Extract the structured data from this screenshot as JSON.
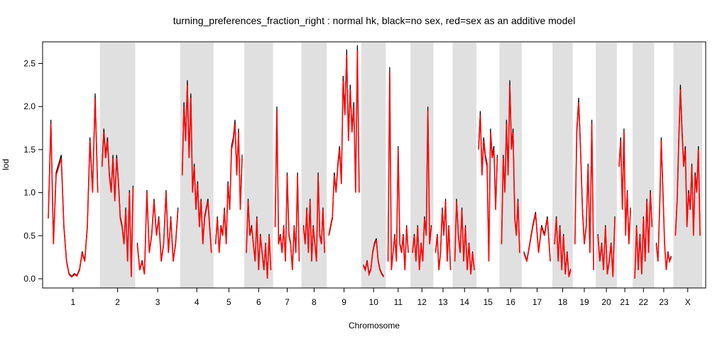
{
  "chart_data": {
    "type": "line",
    "title": "turning_preferences_fraction_right : normal hk, black=no sex, red=sex as an additive model",
    "xlabel": "Chromosome",
    "ylabel": "lod",
    "ylim": [
      0,
      2.7
    ],
    "yticks": [
      0.0,
      0.5,
      1.0,
      1.5,
      2.0,
      2.5
    ],
    "ytick_labels": [
      "0.0",
      "0.5",
      "1.0",
      "1.5",
      "2.0",
      "2.5"
    ],
    "grid": false,
    "shaded_alternate_chromosomes": true,
    "colors": {
      "no_sex": "#000000",
      "sex_additive": "#ff0000",
      "shade": "#e0e0e0"
    },
    "chromosomes": [
      {
        "name": "1",
        "length": 1.4,
        "points": [
          0.7,
          1.8,
          0.4,
          1.2,
          1.3,
          1.4,
          0.6,
          0.2,
          0.05,
          0.02,
          0.05,
          0.03,
          0.1,
          0.3,
          0.2,
          0.6,
          1.6,
          1.0,
          2.1,
          1.0
        ]
      },
      {
        "name": "2",
        "length": 0.92,
        "points": [
          1.3,
          1.7,
          1.4,
          1.6,
          1.2,
          1.0,
          1.4,
          0.9,
          1.4,
          1.1,
          0.7,
          0.6,
          0.4,
          0.8,
          0.2,
          1.0,
          0.02,
          1.05
        ]
      },
      {
        "name": "3",
        "length": 1.17,
        "points": [
          0.4,
          0.1,
          0.2,
          0.05,
          1.0,
          0.3,
          0.5,
          0.9,
          0.5,
          0.7,
          0.2,
          0.4,
          1.0,
          0.3,
          0.7,
          0.2,
          0.4,
          0.8
        ]
      },
      {
        "name": "4",
        "length": 0.87,
        "points": [
          1.2,
          2.0,
          1.6,
          2.25,
          1.4,
          2.1,
          1.0,
          1.3,
          0.8,
          1.1,
          0.6,
          0.9,
          0.4,
          0.7,
          0.8,
          0.9,
          0.6,
          0.3
        ]
      },
      {
        "name": "5",
        "length": 0.8,
        "points": [
          0.4,
          0.7,
          0.3,
          0.6,
          0.5,
          0.8,
          0.4,
          1.1,
          0.8,
          1.5,
          1.6,
          1.8,
          1.2,
          1.7,
          0.8,
          1.4
        ]
      },
      {
        "name": "6",
        "length": 0.75,
        "points": [
          0.3,
          0.9,
          0.5,
          0.6,
          0.4,
          0.2,
          0.7,
          0.1,
          0.5,
          0.3,
          0.1,
          0.4,
          0.0,
          0.5,
          0.1
        ]
      },
      {
        "name": "7",
        "length": 0.74,
        "points": [
          0.6,
          1.95,
          0.4,
          0.5,
          0.3,
          0.6,
          0.2,
          1.2,
          0.5,
          0.4,
          0.1,
          0.6,
          0.3,
          1.2,
          0.2
        ]
      },
      {
        "name": "8",
        "length": 0.66,
        "points": [
          0.6,
          0.4,
          0.8,
          0.3,
          0.9,
          0.2,
          0.6,
          0.4,
          0.2,
          1.2,
          0.5,
          0.4,
          0.8,
          0.3
        ]
      },
      {
        "name": "9",
        "length": 0.9,
        "points": [
          0.5,
          0.6,
          0.7,
          1.2,
          1.0,
          1.3,
          1.5,
          1.1,
          2.3,
          1.9,
          2.6,
          1.6,
          2.2,
          1.7,
          2.0,
          1.0,
          2.65,
          1.0
        ]
      },
      {
        "name": "10",
        "length": 0.64,
        "points": [
          0.15,
          0.1,
          0.2,
          0.05,
          0.1,
          0.3,
          0.4,
          0.45,
          0.2,
          0.1,
          0.05,
          0.02
        ]
      },
      {
        "name": "11",
        "length": 0.64,
        "points": [
          0.2,
          2.4,
          0.1,
          0.3,
          0.5,
          0.2,
          1.5,
          0.4,
          0.3,
          0.5,
          0.1,
          0.6,
          0.3
        ]
      },
      {
        "name": "12",
        "length": 0.6,
        "points": [
          0.3,
          0.5,
          0.2,
          0.6,
          0.1,
          0.4,
          0.2,
          0.7,
          0.5,
          1.95,
          0.4,
          0.6
        ]
      },
      {
        "name": "13",
        "length": 0.5,
        "points": [
          0.3,
          0.5,
          0.1,
          0.3,
          0.8,
          0.5,
          0.9,
          0.2,
          0.6,
          0.1
        ]
      },
      {
        "name": "14",
        "length": 0.62,
        "points": [
          0.2,
          0.9,
          0.5,
          0.3,
          0.8,
          0.2,
          0.6,
          0.1,
          0.4,
          0.05,
          0.3,
          0.1
        ]
      },
      {
        "name": "15",
        "length": 0.6,
        "points": [
          1.5,
          1.9,
          1.2,
          1.6,
          1.4,
          1.3,
          0.2,
          1.7,
          1.4,
          1.5,
          0.8,
          1.4
        ]
      },
      {
        "name": "16",
        "length": 0.58,
        "points": [
          0.4,
          1.4,
          1.0,
          1.8,
          1.2,
          2.25,
          1.5,
          1.7,
          0.7,
          0.5,
          0.9,
          0.3
        ]
      },
      {
        "name": "17",
        "length": 0.8,
        "points": [
          0.3,
          0.2,
          0.4,
          0.6,
          0.75,
          0.3,
          0.6,
          0.5,
          0.7,
          0.2
        ]
      },
      {
        "name": "18",
        "length": 0.53,
        "points": [
          0.4,
          0.7,
          0.2,
          0.6,
          0.1,
          0.5,
          0.05,
          0.3,
          0.02,
          0.1
        ]
      },
      {
        "name": "19",
        "length": 0.6,
        "points": [
          0.4,
          1.7,
          2.05,
          1.5,
          0.8,
          0.4,
          0.6,
          1.3,
          0.3,
          1.8,
          0.1
        ]
      },
      {
        "name": "20",
        "length": 0.55,
        "points": [
          0.5,
          0.2,
          0.4,
          0.1,
          0.6,
          0.05,
          0.2,
          0.4,
          0.02,
          0.7
        ]
      },
      {
        "name": "21",
        "length": 0.41,
        "points": [
          1.3,
          1.6,
          0.8,
          1.7,
          0.5,
          1.0,
          0.4,
          0.8
        ]
      },
      {
        "name": "22",
        "length": 0.56,
        "points": [
          0.0,
          0.6,
          0.1,
          0.5,
          0.05,
          0.7,
          0.2,
          0.9,
          0.3,
          1.0,
          0.6
        ]
      },
      {
        "name": "23",
        "length": 0.5,
        "points": [
          0.4,
          0.2,
          0.8,
          1.6,
          1.0,
          0.4,
          0.1,
          0.3,
          0.2,
          0.25
        ]
      },
      {
        "name": "X",
        "length": 0.75,
        "points": [
          0.5,
          0.9,
          1.6,
          2.2,
          1.7,
          1.3,
          1.5,
          0.6,
          1.0,
          0.8,
          1.3,
          0.5,
          1.2,
          1.0,
          1.5,
          0.5
        ]
      }
    ]
  }
}
